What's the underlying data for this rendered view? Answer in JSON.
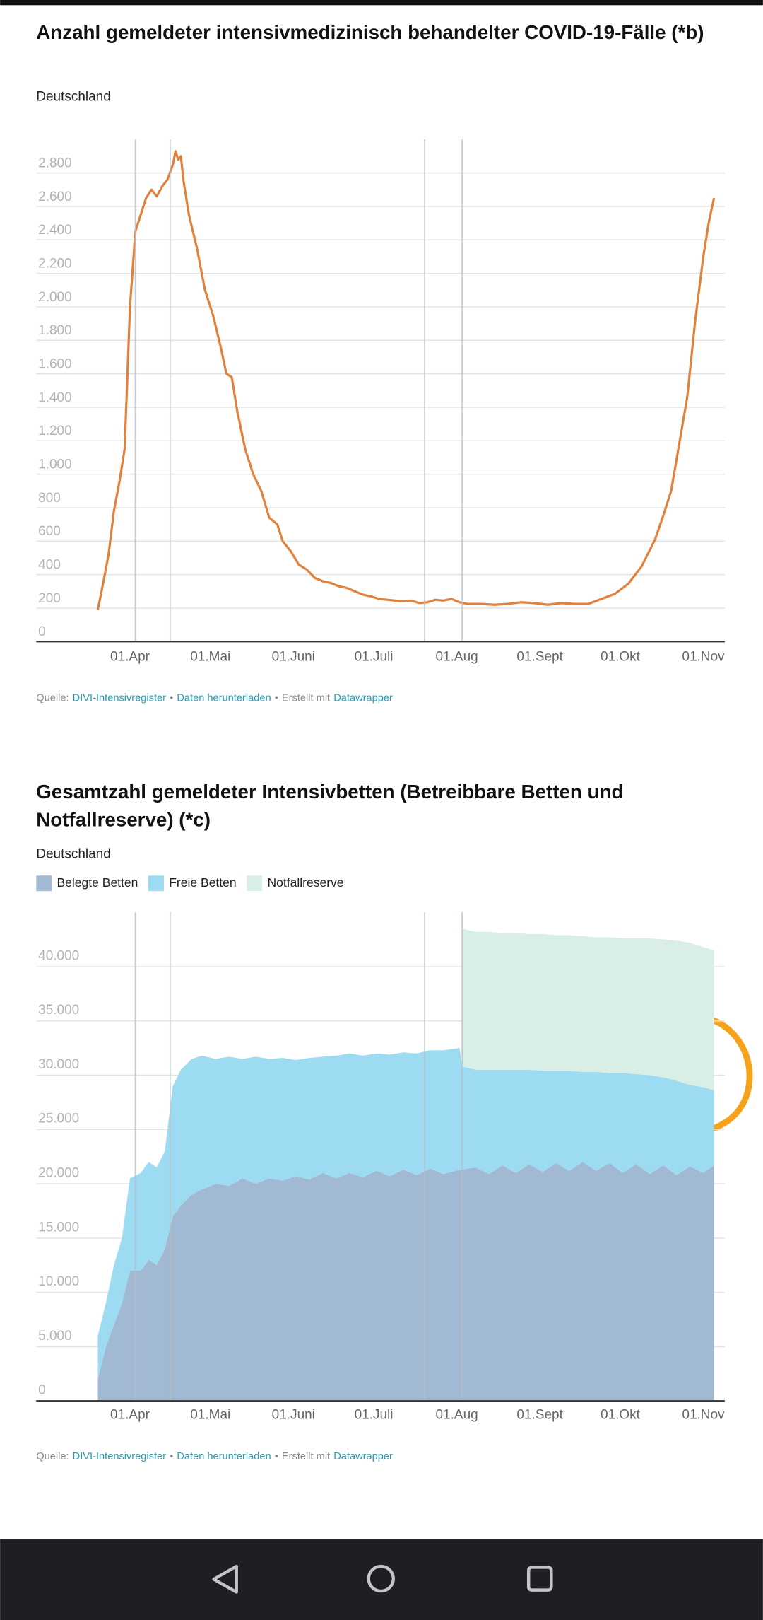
{
  "chart_data": [
    {
      "type": "line",
      "title": "Anzahl gemeldeter intensivmedizinisch behandelter COVID-19-Fälle (*b)",
      "subtitle": "Deutschland",
      "x": [
        "20.03",
        "22.03",
        "24.03",
        "26.03",
        "28.03",
        "30.03",
        "01.04",
        "03.04",
        "05.04",
        "07.04",
        "09.04",
        "11.04",
        "13.04",
        "15.04",
        "17.04",
        "18.04",
        "19.04",
        "20.04",
        "21.04",
        "23.04",
        "26.04",
        "29.04",
        "02.05",
        "05.05",
        "07.05",
        "09.05",
        "11.05",
        "14.05",
        "17.05",
        "20.05",
        "23.05",
        "26.05",
        "28.05",
        "31.05",
        "03.06",
        "06.06",
        "09.06",
        "12.06",
        "15.06",
        "18.06",
        "21.06",
        "24.06",
        "27.06",
        "30.06",
        "03.07",
        "06.07",
        "09.07",
        "12.07",
        "15.07",
        "18.07",
        "21.07",
        "24.07",
        "27.07",
        "30.07",
        "02.08",
        "05.08",
        "10.08",
        "15.08",
        "20.08",
        "25.08",
        "30.08",
        "04.09",
        "09.09",
        "14.09",
        "19.09",
        "24.09",
        "29.09",
        "04.10",
        "09.10",
        "14.10",
        "17.10",
        "20.10",
        "23.10",
        "26.10",
        "29.10",
        "01.11",
        "03.11",
        "05.11"
      ],
      "values": [
        190,
        350,
        520,
        780,
        950,
        1150,
        2000,
        2450,
        2550,
        2650,
        2700,
        2660,
        2720,
        2760,
        2850,
        2930,
        2880,
        2900,
        2750,
        2550,
        2350,
        2100,
        1950,
        1750,
        1600,
        1580,
        1380,
        1150,
        1000,
        900,
        740,
        700,
        600,
        540,
        460,
        430,
        380,
        360,
        350,
        330,
        320,
        300,
        280,
        270,
        255,
        250,
        245,
        240,
        245,
        230,
        235,
        250,
        245,
        255,
        235,
        225,
        225,
        220,
        225,
        235,
        230,
        220,
        230,
        225,
        225,
        255,
        285,
        345,
        450,
        610,
        750,
        900,
        1180,
        1460,
        1920,
        2300,
        2500,
        2650
      ],
      "color": "#e0823d",
      "xlim": [
        "26.02",
        "09.11"
      ],
      "xticks": [
        {
          "value": "01.04",
          "label": "01.Apr"
        },
        {
          "value": "01.05",
          "label": "01.Mai"
        },
        {
          "value": "01.06",
          "label": "01.Juni"
        },
        {
          "value": "01.07",
          "label": "01.Juli"
        },
        {
          "value": "01.08",
          "label": "01.Aug"
        },
        {
          "value": "01.09",
          "label": "01.Sept"
        },
        {
          "value": "01.10",
          "label": "01.Okt"
        },
        {
          "value": "01.11",
          "label": "01.Nov"
        }
      ],
      "reference_lines": [
        "03.04",
        "16.04",
        "20.07",
        "03.08"
      ],
      "ylim": [
        0,
        3000
      ],
      "yticks": [
        0,
        200,
        400,
        600,
        800,
        {
          "value": 1000,
          "label": "1.000"
        },
        {
          "value": 1200,
          "label": "1.200"
        },
        {
          "value": 1400,
          "label": "1.400"
        },
        {
          "value": 1600,
          "label": "1.600"
        },
        {
          "value": 1800,
          "label": "1.800"
        },
        {
          "value": 2000,
          "label": "2.000"
        },
        {
          "value": 2200,
          "label": "2.200"
        },
        {
          "value": 2400,
          "label": "2.400"
        },
        {
          "value": 2600,
          "label": "2.600"
        },
        {
          "value": 2800,
          "label": "2.800"
        }
      ],
      "grid": true,
      "source": {
        "label": "Quelle:",
        "name": "DIVI-Intensivregister",
        "separator": "•",
        "download": "Daten herunterladen",
        "credit": "Erstellt mit",
        "tool": "Datawrapper"
      }
    },
    {
      "type": "area",
      "stacked": true,
      "title": "Gesamtzahl gemeldeter Intensivbetten (Betreibbare Betten und Notfallreserve) (*c)",
      "subtitle": "Deutschland",
      "x": [
        "20.03",
        "23.03",
        "26.03",
        "29.03",
        "01.04",
        "05.04",
        "08.04",
        "11.04",
        "14.04",
        "17.04",
        "20.04",
        "24.04",
        "28.04",
        "03.05",
        "08.05",
        "13.05",
        "18.05",
        "23.05",
        "28.05",
        "02.06",
        "07.06",
        "12.06",
        "17.06",
        "22.06",
        "27.06",
        "02.07",
        "07.07",
        "12.07",
        "17.07",
        "22.07",
        "27.07",
        "02.08",
        "03.08",
        "08.08",
        "13.08",
        "18.08",
        "23.08",
        "28.08",
        "02.09",
        "07.09",
        "12.09",
        "17.09",
        "22.09",
        "27.09",
        "02.10",
        "07.10",
        "12.10",
        "17.10",
        "22.10",
        "27.10",
        "01.11",
        "05.11"
      ],
      "series": [
        {
          "name": "Belegte Betten",
          "color": "#a2b9d3",
          "values": [
            2000,
            5000,
            7000,
            9000,
            12000,
            12000,
            13000,
            12500,
            14000,
            17000,
            18000,
            19000,
            19500,
            20000,
            19800,
            20500,
            20000,
            20500,
            20300,
            20700,
            20400,
            21000,
            20500,
            21000,
            20600,
            21200,
            20700,
            21300,
            20800,
            21400,
            20900,
            21300,
            21300,
            21500,
            20900,
            21700,
            21000,
            21800,
            21100,
            21900,
            21200,
            22000,
            21200,
            21900,
            21000,
            21800,
            20900,
            21700,
            20800,
            21600,
            21000,
            21700
          ]
        },
        {
          "name": "Freie Betten",
          "color": "#9ddbf3",
          "values": [
            4000,
            4000,
            5500,
            6000,
            8500,
            9000,
            9000,
            9000,
            9000,
            12000,
            12500,
            12500,
            12300,
            11500,
            11900,
            11000,
            11700,
            11000,
            11300,
            10700,
            11200,
            10700,
            11300,
            11000,
            11200,
            10800,
            11200,
            10800,
            11200,
            10900,
            11400,
            11200,
            9500,
            9000,
            9600,
            8800,
            9500,
            8700,
            9300,
            8500,
            9200,
            8300,
            9100,
            8300,
            9200,
            8300,
            9100,
            8100,
            8700,
            7500,
            7900,
            6900
          ]
        },
        {
          "name": "Notfallreserve",
          "color": "#d9efe6",
          "values": [
            null,
            null,
            null,
            null,
            null,
            null,
            null,
            null,
            null,
            null,
            null,
            null,
            null,
            null,
            null,
            null,
            null,
            null,
            null,
            null,
            null,
            null,
            null,
            null,
            null,
            null,
            null,
            null,
            null,
            null,
            null,
            null,
            12700,
            12700,
            12700,
            12600,
            12600,
            12500,
            12600,
            12500,
            12500,
            12500,
            12400,
            12500,
            12400,
            12500,
            12600,
            12700,
            12900,
            13100,
            12900,
            12900
          ]
        }
      ],
      "xlim": [
        "26.02",
        "09.11"
      ],
      "xticks": [
        {
          "value": "01.04",
          "label": "01.Apr"
        },
        {
          "value": "01.05",
          "label": "01.Mai"
        },
        {
          "value": "01.06",
          "label": "01.Juni"
        },
        {
          "value": "01.07",
          "label": "01.Juli"
        },
        {
          "value": "01.08",
          "label": "01.Aug"
        },
        {
          "value": "01.09",
          "label": "01.Sept"
        },
        {
          "value": "01.10",
          "label": "01.Okt"
        },
        {
          "value": "01.11",
          "label": "01.Nov"
        }
      ],
      "reference_lines": [
        "03.04",
        "16.04",
        "20.07",
        "03.08"
      ],
      "ylim": [
        0,
        45000
      ],
      "yticks": [
        0,
        {
          "value": 5000,
          "label": "5.000"
        },
        {
          "value": 10000,
          "label": "10.000"
        },
        {
          "value": 15000,
          "label": "15.000"
        },
        {
          "value": 20000,
          "label": "20.000"
        },
        {
          "value": 25000,
          "label": "25.000"
        },
        {
          "value": 30000,
          "label": "30.000"
        },
        {
          "value": 35000,
          "label": "35.000"
        },
        {
          "value": 40000,
          "label": "40.000"
        }
      ],
      "grid": true,
      "legend": "top-left",
      "source": {
        "label": "Quelle:",
        "name": "DIVI-Intensivregister",
        "separator": "•",
        "download": "Daten herunterladen",
        "credit": "Erstellt mit",
        "tool": "Datawrapper"
      }
    }
  ]
}
